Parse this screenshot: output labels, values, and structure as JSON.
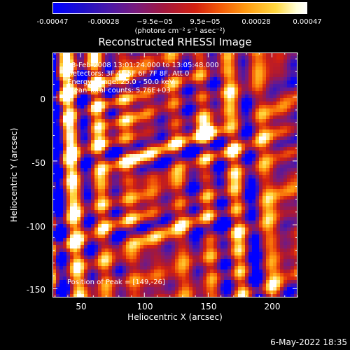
{
  "colorbar": {
    "ticks": [
      "-0.00047",
      "-0.00028",
      "−9.5e−05",
      "9.5e−05",
      "0.00028",
      "0.00047"
    ],
    "unit": "(photons cm⁻² s⁻¹ asec⁻²)"
  },
  "title": "Reconstructed RHESSI Image",
  "annotations": {
    "time": "3-Feb-2008 13:01:24.000 to 13:05:48.000",
    "detectors": "Detectors: 3F 4F 5F 6F 7F 8F, Att 0",
    "energy": "Energy Range: 25.0 - 50.0 keV",
    "clean": "Clean    Total counts: 5.76E+03",
    "peak": "Position of Peak = [149,-26]"
  },
  "axes": {
    "xlabel": "Heliocentric X (arcsec)",
    "ylabel": "Heliocentric Y (arcsec)",
    "xticks": [
      "50",
      "100",
      "150",
      "200"
    ],
    "yticks": [
      "0",
      "-50",
      "-100",
      "-150"
    ],
    "xrange": [
      28,
      220
    ],
    "yrange": [
      -157,
      35
    ]
  },
  "image": {
    "peak_x": 149,
    "peak_y": -26,
    "colors": [
      "#0000ff",
      "#4a18a8",
      "#7a1a7a",
      "#a4183c",
      "#d22010",
      "#f25a08",
      "#ff9a10",
      "#ffd840",
      "#ffffff"
    ]
  },
  "footer": {
    "date": "6-May-2022 18:35"
  }
}
